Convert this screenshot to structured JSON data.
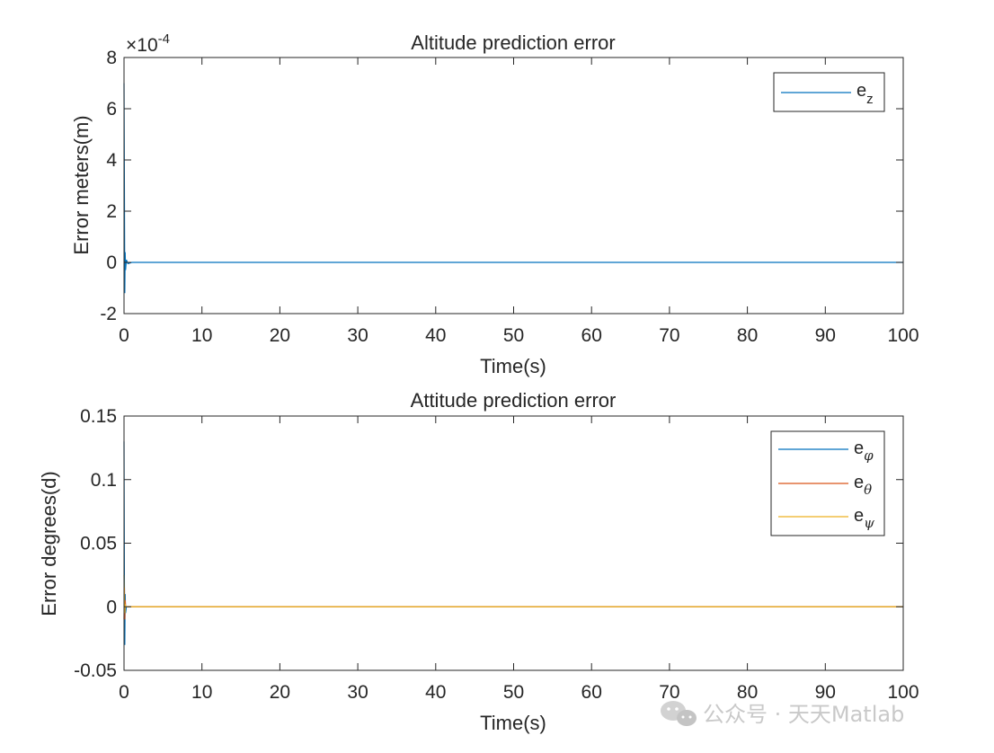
{
  "chart_data": [
    {
      "type": "line",
      "title": "Altitude prediction error",
      "xlabel": "Time(s)",
      "ylabel": "Error meters(m)",
      "xlim": [
        0,
        100
      ],
      "ylim": [
        -2,
        8
      ],
      "y_exponent_label": "×10",
      "y_exponent_power": "-4",
      "xticks": [
        "0",
        "10",
        "20",
        "30",
        "40",
        "50",
        "60",
        "70",
        "80",
        "90",
        "100"
      ],
      "yticks": [
        "-2",
        "0",
        "2",
        "4",
        "6",
        "8"
      ],
      "x": [
        0,
        0.05,
        0.1,
        0.15,
        0.2,
        0.3,
        0.5,
        1,
        2,
        100
      ],
      "series": [
        {
          "name": "e",
          "subscript": "z",
          "color": "#0072BD",
          "values": [
            7.0,
            3.0,
            -1.2,
            0.4,
            -0.3,
            0.1,
            -0.05,
            0,
            0,
            0
          ]
        }
      ],
      "legend": "top-right",
      "grid": false
    },
    {
      "type": "line",
      "title": "Attitude prediction error",
      "xlabel": "Time(s)",
      "ylabel": "Error degrees(d)",
      "xlim": [
        0,
        100
      ],
      "ylim": [
        -0.05,
        0.15
      ],
      "xticks": [
        "0",
        "10",
        "20",
        "30",
        "40",
        "50",
        "60",
        "70",
        "80",
        "90",
        "100"
      ],
      "yticks": [
        "-0.05",
        "0",
        "0.05",
        "0.1",
        "0.15"
      ],
      "x": [
        0,
        0.05,
        0.1,
        0.15,
        0.2,
        0.3,
        0.5,
        1,
        2,
        100
      ],
      "series": [
        {
          "name": "e",
          "subscript": "φ",
          "color": "#0072BD",
          "values": [
            0.13,
            0.02,
            -0.03,
            0.01,
            -0.005,
            0,
            0,
            0,
            0,
            0
          ]
        },
        {
          "name": "e",
          "subscript": "θ",
          "color": "#D95319",
          "values": [
            -0.01,
            0.015,
            -0.01,
            0.005,
            0,
            0,
            0,
            0,
            0,
            0
          ]
        },
        {
          "name": "e",
          "subscript": "ψ",
          "color": "#EDB120",
          "values": [
            0.025,
            0.005,
            -0.005,
            0.002,
            0,
            0,
            0,
            0,
            0,
            0
          ]
        }
      ],
      "legend": "top-right",
      "grid": false
    }
  ],
  "watermark": "公众号 · 天天Matlab"
}
